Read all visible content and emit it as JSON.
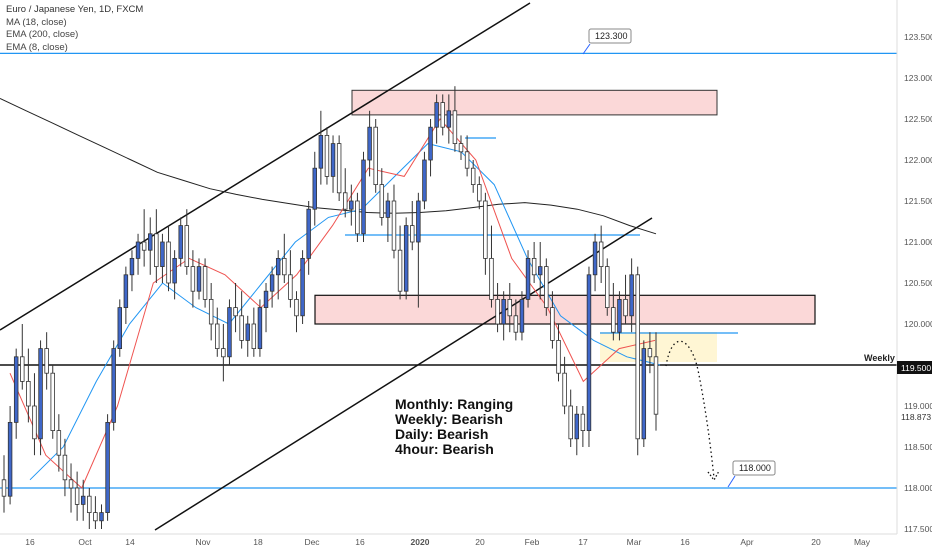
{
  "legend": {
    "title": "Euro / Japanese Yen, 1D, FXCM",
    "indicators": [
      "MA (18, close)",
      "EMA (200, close)",
      "EMA (8, close)"
    ]
  },
  "chart_data": {
    "type": "candlestick",
    "symbol": "Euro / Japanese Yen",
    "timeframe": "1D",
    "source": "FXCM",
    "ylim": [
      117.5,
      123.5
    ],
    "y_ticks": [
      117.5,
      118.0,
      118.5,
      119.0,
      119.5,
      120.0,
      120.5,
      121.0,
      121.5,
      122.0,
      122.5,
      123.0,
      123.5
    ],
    "x_tick_labels": [
      "16",
      "Oct",
      "14",
      "Nov",
      "18",
      "Dec",
      "16",
      "2020",
      "20",
      "Feb",
      "17",
      "Mar",
      "16",
      "Apr",
      "20",
      "May"
    ],
    "price_labels": {
      "last": "118.873",
      "weekly": "119.500"
    },
    "candles": [
      {
        "o": 118.1,
        "h": 118.4,
        "l": 117.7,
        "c": 117.9
      },
      {
        "o": 117.9,
        "h": 119.0,
        "l": 117.8,
        "c": 118.8
      },
      {
        "o": 118.8,
        "h": 119.7,
        "l": 118.6,
        "c": 119.6
      },
      {
        "o": 119.6,
        "h": 120.0,
        "l": 119.2,
        "c": 119.3
      },
      {
        "o": 119.3,
        "h": 119.7,
        "l": 118.8,
        "c": 119.0
      },
      {
        "o": 119.0,
        "h": 119.4,
        "l": 118.4,
        "c": 118.6
      },
      {
        "o": 118.6,
        "h": 119.8,
        "l": 118.4,
        "c": 119.7
      },
      {
        "o": 119.7,
        "h": 119.9,
        "l": 119.2,
        "c": 119.4
      },
      {
        "o": 119.4,
        "h": 119.5,
        "l": 118.6,
        "c": 118.7
      },
      {
        "o": 118.7,
        "h": 118.9,
        "l": 118.2,
        "c": 118.4
      },
      {
        "o": 118.4,
        "h": 118.6,
        "l": 117.9,
        "c": 118.1
      },
      {
        "o": 118.1,
        "h": 118.3,
        "l": 117.7,
        "c": 118.0
      },
      {
        "o": 118.0,
        "h": 118.2,
        "l": 117.6,
        "c": 117.8
      },
      {
        "o": 117.8,
        "h": 118.1,
        "l": 117.6,
        "c": 117.9
      },
      {
        "o": 117.9,
        "h": 118.0,
        "l": 117.5,
        "c": 117.7
      },
      {
        "o": 117.7,
        "h": 117.9,
        "l": 117.5,
        "c": 117.6
      },
      {
        "o": 117.6,
        "h": 117.8,
        "l": 117.5,
        "c": 117.7
      },
      {
        "o": 117.7,
        "h": 118.9,
        "l": 117.6,
        "c": 118.8
      },
      {
        "o": 118.8,
        "h": 119.8,
        "l": 118.7,
        "c": 119.7
      },
      {
        "o": 119.7,
        "h": 120.3,
        "l": 119.6,
        "c": 120.2
      },
      {
        "o": 120.2,
        "h": 120.7,
        "l": 120.0,
        "c": 120.6
      },
      {
        "o": 120.6,
        "h": 120.9,
        "l": 120.4,
        "c": 120.8
      },
      {
        "o": 120.8,
        "h": 121.1,
        "l": 120.6,
        "c": 121.0
      },
      {
        "o": 121.0,
        "h": 121.4,
        "l": 120.7,
        "c": 120.9
      },
      {
        "o": 120.9,
        "h": 121.3,
        "l": 120.6,
        "c": 121.1
      },
      {
        "o": 121.1,
        "h": 121.4,
        "l": 120.5,
        "c": 120.7
      },
      {
        "o": 120.7,
        "h": 121.1,
        "l": 120.5,
        "c": 121.0
      },
      {
        "o": 121.0,
        "h": 121.2,
        "l": 120.4,
        "c": 120.5
      },
      {
        "o": 120.5,
        "h": 120.9,
        "l": 120.3,
        "c": 120.8
      },
      {
        "o": 120.8,
        "h": 121.3,
        "l": 120.7,
        "c": 121.2
      },
      {
        "o": 121.2,
        "h": 121.4,
        "l": 120.6,
        "c": 120.7
      },
      {
        "o": 120.7,
        "h": 120.9,
        "l": 120.2,
        "c": 120.4
      },
      {
        "o": 120.4,
        "h": 120.8,
        "l": 120.3,
        "c": 120.7
      },
      {
        "o": 120.7,
        "h": 120.8,
        "l": 120.2,
        "c": 120.3
      },
      {
        "o": 120.3,
        "h": 120.5,
        "l": 119.8,
        "c": 120.0
      },
      {
        "o": 120.0,
        "h": 120.2,
        "l": 119.6,
        "c": 119.7
      },
      {
        "o": 119.7,
        "h": 120.0,
        "l": 119.3,
        "c": 119.6
      },
      {
        "o": 119.6,
        "h": 120.3,
        "l": 119.5,
        "c": 120.2
      },
      {
        "o": 120.2,
        "h": 120.5,
        "l": 119.9,
        "c": 120.1
      },
      {
        "o": 120.1,
        "h": 120.4,
        "l": 119.7,
        "c": 119.8
      },
      {
        "o": 119.8,
        "h": 120.1,
        "l": 119.6,
        "c": 120.0
      },
      {
        "o": 120.0,
        "h": 120.2,
        "l": 119.6,
        "c": 119.7
      },
      {
        "o": 119.7,
        "h": 120.3,
        "l": 119.6,
        "c": 120.2
      },
      {
        "o": 120.2,
        "h": 120.5,
        "l": 119.9,
        "c": 120.4
      },
      {
        "o": 120.4,
        "h": 120.7,
        "l": 120.2,
        "c": 120.6
      },
      {
        "o": 120.6,
        "h": 120.9,
        "l": 120.3,
        "c": 120.8
      },
      {
        "o": 120.8,
        "h": 121.1,
        "l": 120.5,
        "c": 120.6
      },
      {
        "o": 120.6,
        "h": 120.9,
        "l": 120.2,
        "c": 120.3
      },
      {
        "o": 120.3,
        "h": 120.4,
        "l": 119.9,
        "c": 120.1
      },
      {
        "o": 120.1,
        "h": 120.9,
        "l": 120.0,
        "c": 120.8
      },
      {
        "o": 120.8,
        "h": 121.5,
        "l": 120.6,
        "c": 121.4
      },
      {
        "o": 121.4,
        "h": 122.1,
        "l": 121.2,
        "c": 121.9
      },
      {
        "o": 121.9,
        "h": 122.6,
        "l": 121.7,
        "c": 122.3
      },
      {
        "o": 122.3,
        "h": 122.4,
        "l": 121.7,
        "c": 121.8
      },
      {
        "o": 121.8,
        "h": 122.3,
        "l": 121.6,
        "c": 122.2
      },
      {
        "o": 122.2,
        "h": 122.3,
        "l": 121.5,
        "c": 121.6
      },
      {
        "o": 121.6,
        "h": 121.9,
        "l": 121.3,
        "c": 121.4
      },
      {
        "o": 121.4,
        "h": 121.7,
        "l": 121.2,
        "c": 121.5
      },
      {
        "o": 121.5,
        "h": 121.6,
        "l": 121.0,
        "c": 121.1
      },
      {
        "o": 121.1,
        "h": 122.1,
        "l": 121.0,
        "c": 122.0
      },
      {
        "o": 122.0,
        "h": 122.6,
        "l": 121.8,
        "c": 122.4
      },
      {
        "o": 122.4,
        "h": 122.5,
        "l": 121.6,
        "c": 121.7
      },
      {
        "o": 121.7,
        "h": 121.9,
        "l": 121.2,
        "c": 121.3
      },
      {
        "o": 121.3,
        "h": 121.6,
        "l": 121.0,
        "c": 121.5
      },
      {
        "o": 121.5,
        "h": 121.7,
        "l": 120.8,
        "c": 120.9
      },
      {
        "o": 120.9,
        "h": 121.2,
        "l": 120.3,
        "c": 120.4
      },
      {
        "o": 120.4,
        "h": 121.3,
        "l": 120.3,
        "c": 121.2
      },
      {
        "o": 121.2,
        "h": 121.5,
        "l": 120.9,
        "c": 121.0
      },
      {
        "o": 121.0,
        "h": 121.6,
        "l": 120.2,
        "c": 121.5
      },
      {
        "o": 121.5,
        "h": 122.1,
        "l": 121.4,
        "c": 122.0
      },
      {
        "o": 122.0,
        "h": 122.5,
        "l": 121.8,
        "c": 122.4
      },
      {
        "o": 122.4,
        "h": 122.8,
        "l": 122.2,
        "c": 122.7
      },
      {
        "o": 122.7,
        "h": 122.8,
        "l": 122.3,
        "c": 122.4
      },
      {
        "o": 122.4,
        "h": 122.8,
        "l": 122.2,
        "c": 122.6
      },
      {
        "o": 122.6,
        "h": 122.9,
        "l": 122.1,
        "c": 122.2
      },
      {
        "o": 122.2,
        "h": 122.3,
        "l": 122.0,
        "c": 122.1
      },
      {
        "o": 122.1,
        "h": 122.3,
        "l": 121.8,
        "c": 121.9
      },
      {
        "o": 121.9,
        "h": 122.0,
        "l": 121.6,
        "c": 121.7
      },
      {
        "o": 121.7,
        "h": 121.8,
        "l": 121.4,
        "c": 121.5
      },
      {
        "o": 121.5,
        "h": 121.6,
        "l": 120.6,
        "c": 120.8
      },
      {
        "o": 120.8,
        "h": 121.2,
        "l": 120.2,
        "c": 120.3
      },
      {
        "o": 120.3,
        "h": 120.5,
        "l": 119.9,
        "c": 120.0
      },
      {
        "o": 120.0,
        "h": 120.4,
        "l": 119.8,
        "c": 120.3
      },
      {
        "o": 120.3,
        "h": 120.5,
        "l": 119.9,
        "c": 120.1
      },
      {
        "o": 120.1,
        "h": 120.3,
        "l": 119.8,
        "c": 119.9
      },
      {
        "o": 119.9,
        "h": 120.4,
        "l": 119.8,
        "c": 120.3
      },
      {
        "o": 120.3,
        "h": 120.9,
        "l": 120.2,
        "c": 120.8
      },
      {
        "o": 120.8,
        "h": 121.0,
        "l": 120.5,
        "c": 120.6
      },
      {
        "o": 120.6,
        "h": 121.0,
        "l": 120.3,
        "c": 120.7
      },
      {
        "o": 120.7,
        "h": 120.8,
        "l": 120.1,
        "c": 120.2
      },
      {
        "o": 120.2,
        "h": 120.4,
        "l": 119.7,
        "c": 119.8
      },
      {
        "o": 119.8,
        "h": 120.0,
        "l": 119.3,
        "c": 119.4
      },
      {
        "o": 119.4,
        "h": 119.6,
        "l": 118.9,
        "c": 119.0
      },
      {
        "o": 119.0,
        "h": 119.2,
        "l": 118.5,
        "c": 118.6
      },
      {
        "o": 118.6,
        "h": 119.0,
        "l": 118.4,
        "c": 118.9
      },
      {
        "o": 118.9,
        "h": 119.0,
        "l": 118.5,
        "c": 118.7
      },
      {
        "o": 118.7,
        "h": 120.7,
        "l": 118.5,
        "c": 120.6
      },
      {
        "o": 120.6,
        "h": 121.1,
        "l": 120.4,
        "c": 121.0
      },
      {
        "o": 121.0,
        "h": 121.2,
        "l": 120.5,
        "c": 120.7
      },
      {
        "o": 120.7,
        "h": 120.8,
        "l": 120.1,
        "c": 120.2
      },
      {
        "o": 120.2,
        "h": 120.5,
        "l": 119.8,
        "c": 119.9
      },
      {
        "o": 119.9,
        "h": 120.4,
        "l": 119.8,
        "c": 120.3
      },
      {
        "o": 120.3,
        "h": 120.6,
        "l": 120.0,
        "c": 120.1
      },
      {
        "o": 120.1,
        "h": 120.8,
        "l": 119.9,
        "c": 120.6
      },
      {
        "o": 120.6,
        "h": 120.7,
        "l": 118.4,
        "c": 118.6
      },
      {
        "o": 118.6,
        "h": 119.8,
        "l": 118.5,
        "c": 119.7
      },
      {
        "o": 119.7,
        "h": 119.9,
        "l": 119.4,
        "c": 119.6
      },
      {
        "o": 119.6,
        "h": 119.9,
        "l": 118.7,
        "c": 118.9
      }
    ],
    "lines": [
      {
        "name": "ema200",
        "color": "#222222",
        "values": [
          122.75,
          122.6,
          122.45,
          122.3,
          122.15,
          122.0,
          121.85,
          121.75,
          121.65,
          121.58,
          121.52,
          121.47,
          121.42,
          121.39,
          121.36,
          121.35,
          121.36,
          121.38,
          121.42,
          121.46,
          121.48,
          121.45,
          121.4,
          121.32,
          121.2,
          121.1
        ]
      },
      {
        "name": "ma18",
        "color": "#2196f3",
        "values": [
          118.1,
          118.5,
          119.3,
          120.0,
          120.5,
          120.2,
          120.0,
          120.5,
          121.0,
          121.3,
          121.4,
          121.8,
          122.2,
          122.1,
          121.7,
          120.8,
          120.1,
          119.8,
          119.6,
          119.5
        ]
      },
      {
        "name": "ema8",
        "color": "#ef5350",
        "values": [
          119.4,
          118.4,
          118.0,
          119.0,
          120.5,
          120.8,
          120.6,
          120.2,
          120.6,
          121.2,
          121.9,
          121.8,
          122.5,
          122.0,
          120.8,
          120.2,
          119.3,
          119.7,
          119.8
        ]
      }
    ],
    "horizontal_levels": [
      {
        "label": "123.300",
        "value": 123.3
      },
      {
        "label": "Weekly",
        "value": 119.5
      },
      {
        "label": "118.000",
        "value": 118.0
      }
    ],
    "zones": [
      {
        "name": "supply-zone",
        "ymin": 122.55,
        "ymax": 122.85
      },
      {
        "name": "key-zone",
        "ymin": 120.0,
        "ymax": 120.35
      }
    ],
    "annotations": {
      "bias": [
        "Monthly: Ranging",
        "Weekly: Bearish",
        "Daily: Bearish",
        "4hour: Bearish"
      ]
    }
  }
}
